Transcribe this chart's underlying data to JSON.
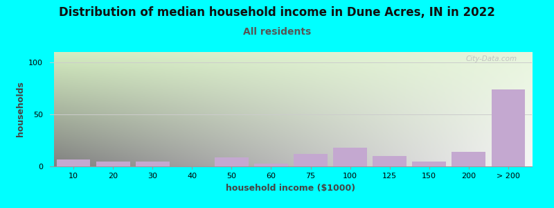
{
  "title": "Distribution of median household income in Dune Acres, IN in 2022",
  "subtitle": "All residents",
  "xlabel": "household income ($1000)",
  "ylabel": "households",
  "background_outer": "#00FFFF",
  "bar_color": "#C4A8D0",
  "watermark": "City-Data.com",
  "categories": [
    "10",
    "20",
    "30",
    "40",
    "50",
    "60",
    "75",
    "100",
    "125",
    "150",
    "200",
    "> 200"
  ],
  "values": [
    7,
    5,
    5,
    0,
    9,
    3,
    12,
    18,
    10,
    5,
    14,
    74
  ],
  "ylim": [
    0,
    110
  ],
  "yticks": [
    0,
    50,
    100
  ],
  "bg_gradient_top": "#d4edc0",
  "bg_gradient_bottom": "#f8fff8",
  "bg_gradient_right": "#ffffff",
  "grid_color": "#cccccc",
  "title_fontsize": 12,
  "subtitle_fontsize": 10,
  "axis_label_fontsize": 9,
  "tick_fontsize": 8
}
